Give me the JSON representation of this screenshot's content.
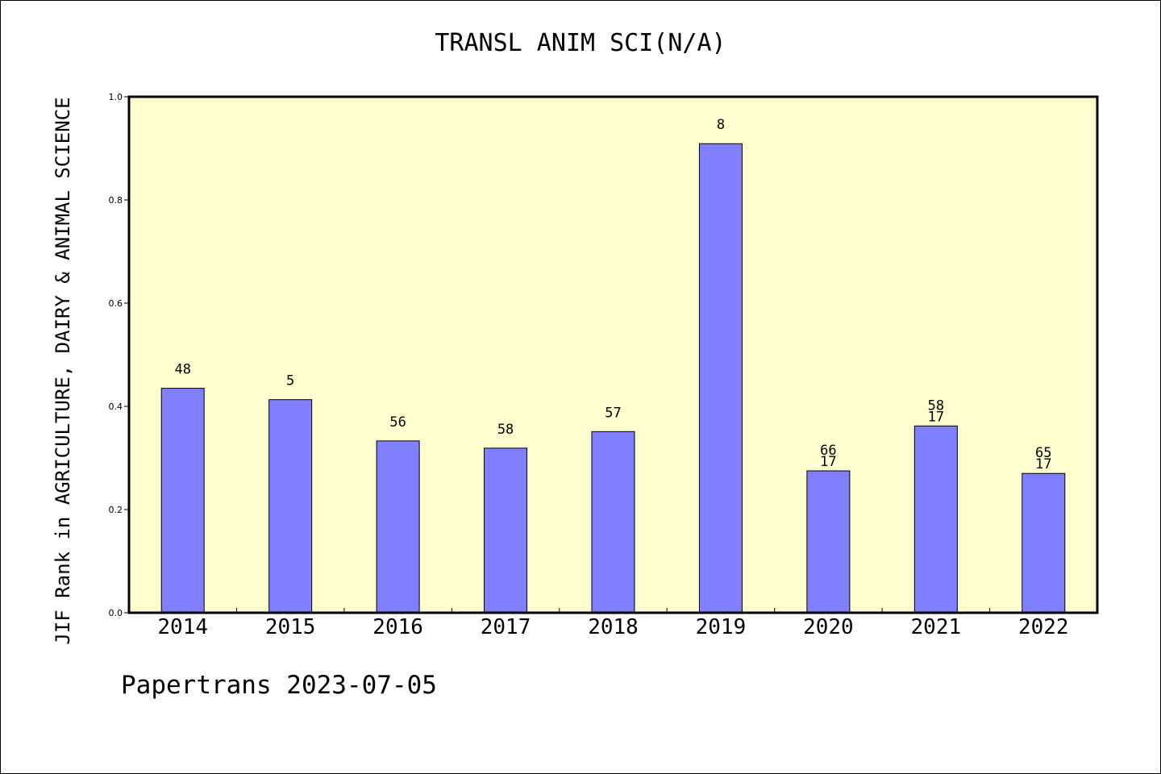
{
  "chart_data": {
    "type": "bar",
    "title": "TRANSL ANIM SCI(N/A)",
    "ylabel": "JIF Rank in AGRICULTURE, DAIRY & ANIMAL SCIENCE",
    "xlabel": "",
    "footer": "Papertrans 2023-07-05",
    "categories": [
      "2014",
      "2015",
      "2016",
      "2017",
      "2018",
      "2019",
      "2020",
      "2021",
      "2022"
    ],
    "values": [
      0.435,
      0.413,
      0.333,
      0.319,
      0.351,
      0.909,
      0.275,
      0.362,
      0.27
    ],
    "bar_labels": [
      [
        "48"
      ],
      [
        "5"
      ],
      [
        "56"
      ],
      [
        "58"
      ],
      [
        "57"
      ],
      [
        "8"
      ],
      [
        "66",
        "17"
      ],
      [
        "58",
        "17"
      ],
      [
        "65",
        "17"
      ]
    ],
    "ylim": [
      0,
      1.0
    ],
    "yticks": [
      "0.0",
      "0.2",
      "0.4",
      "0.6",
      "0.8",
      "1.0"
    ],
    "grid": false,
    "colors": {
      "plot_background": "#FFFFD0",
      "bar_fill": "#8080FF",
      "bar_stroke": "#000000",
      "axis": "#000000"
    }
  }
}
